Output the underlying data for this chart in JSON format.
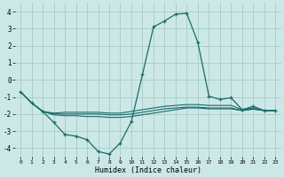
{
  "xlabel": "Humidex (Indice chaleur)",
  "bg_color": "#cce8e6",
  "grid_color": "#aacfcc",
  "line_color": "#1a6b6b",
  "xlim": [
    -0.5,
    23.5
  ],
  "ylim": [
    -4.5,
    4.5
  ],
  "xticks": [
    0,
    1,
    2,
    3,
    4,
    5,
    6,
    7,
    8,
    9,
    10,
    11,
    12,
    13,
    14,
    15,
    16,
    17,
    18,
    19,
    20,
    21,
    22,
    23
  ],
  "yticks": [
    -4,
    -3,
    -2,
    -1,
    0,
    1,
    2,
    3,
    4
  ],
  "line1_x": [
    0,
    1,
    2,
    3,
    4,
    5,
    6,
    7,
    8,
    9,
    10,
    11,
    12,
    13,
    14,
    15,
    16,
    17,
    18,
    19,
    20,
    21,
    22,
    23
  ],
  "line1_y": [
    -0.7,
    -1.35,
    -1.85,
    -2.5,
    -3.2,
    -3.3,
    -3.5,
    -4.2,
    -4.35,
    -3.7,
    -2.45,
    0.3,
    3.1,
    3.45,
    3.85,
    3.9,
    2.2,
    -0.95,
    -1.15,
    -1.05,
    -1.75,
    -1.55,
    -1.8,
    -1.8
  ],
  "line2_x": [
    0,
    1,
    2,
    3,
    4,
    5,
    6,
    7,
    8,
    9,
    10,
    11,
    12,
    13,
    14,
    15,
    16,
    17,
    18,
    19,
    20,
    21,
    22,
    23
  ],
  "line2_y": [
    -0.7,
    -1.35,
    -1.85,
    -1.95,
    -1.9,
    -1.9,
    -1.9,
    -1.9,
    -1.95,
    -1.95,
    -1.85,
    -1.75,
    -1.65,
    -1.55,
    -1.5,
    -1.45,
    -1.45,
    -1.5,
    -1.5,
    -1.5,
    -1.75,
    -1.65,
    -1.8,
    -1.8
  ],
  "line3_x": [
    0,
    1,
    2,
    3,
    4,
    5,
    6,
    7,
    8,
    9,
    10,
    11,
    12,
    13,
    14,
    15,
    16,
    17,
    18,
    19,
    20,
    21,
    22,
    23
  ],
  "line3_y": [
    -0.7,
    -1.35,
    -1.85,
    -2.0,
    -2.0,
    -2.0,
    -2.0,
    -2.0,
    -2.05,
    -2.05,
    -2.0,
    -1.9,
    -1.8,
    -1.7,
    -1.65,
    -1.6,
    -1.6,
    -1.65,
    -1.65,
    -1.65,
    -1.8,
    -1.7,
    -1.8,
    -1.8
  ],
  "line4_x": [
    0,
    1,
    2,
    3,
    4,
    5,
    6,
    7,
    8,
    9,
    10,
    11,
    12,
    13,
    14,
    15,
    16,
    17,
    18,
    19,
    20,
    21,
    22,
    23
  ],
  "line4_y": [
    -0.7,
    -1.35,
    -1.85,
    -2.05,
    -2.1,
    -2.1,
    -2.15,
    -2.15,
    -2.2,
    -2.2,
    -2.15,
    -2.05,
    -1.95,
    -1.85,
    -1.75,
    -1.65,
    -1.65,
    -1.7,
    -1.7,
    -1.7,
    -1.8,
    -1.72,
    -1.8,
    -1.8
  ]
}
